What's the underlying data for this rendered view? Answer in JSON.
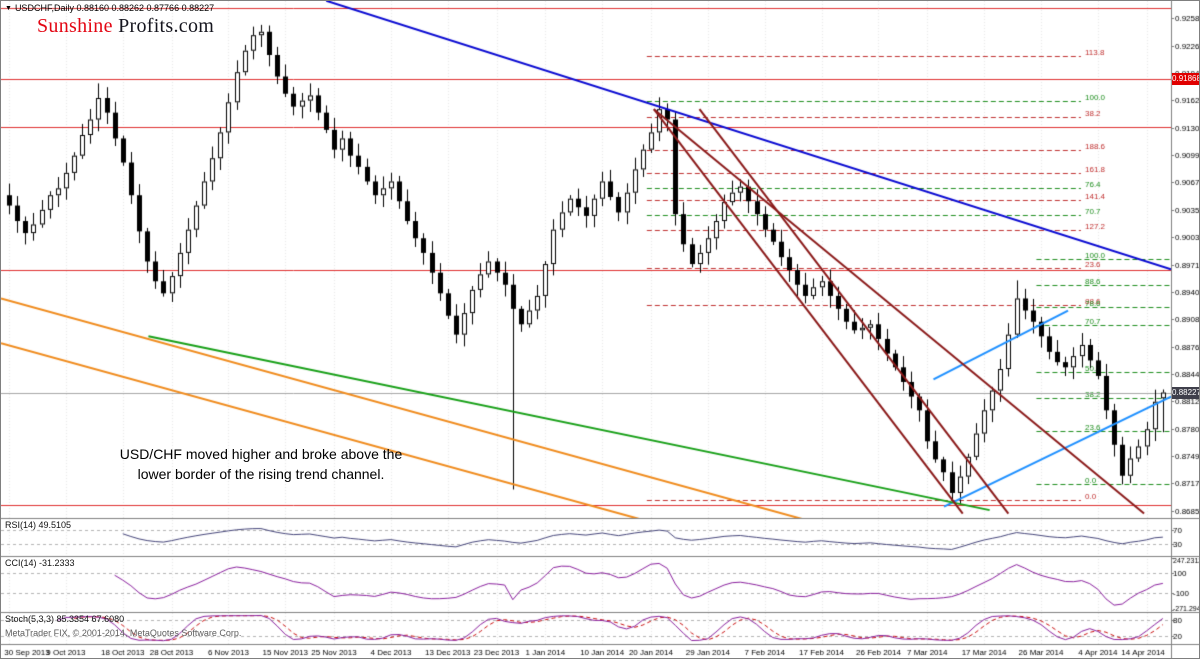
{
  "window": {
    "collapse_marker": "▼",
    "symbol_period": "USDCHF,Daily",
    "ohlc_text": "0.88160 0.88262 0.87766 0.88227"
  },
  "watermark": {
    "brand_primary": "Sunshine",
    "brand_secondary": "Profits.com"
  },
  "annotation": {
    "line1": "USD/CHF moved higher and broke above the",
    "line2": "lower border of the rising trend channel."
  },
  "footer": {
    "copyright": "MetaTrader FIX, © 2001-2014, MetaQuotes Software Corp."
  },
  "panels": {
    "rsi": {
      "label": "RSI(14) 49.5105",
      "levels": [
        70,
        30
      ],
      "range": [
        0,
        100
      ],
      "color": "#45457a",
      "axis_labels": [
        {
          "text": "70",
          "v": 70
        },
        {
          "text": "30",
          "v": 30
        }
      ]
    },
    "cci": {
      "label": "CCI(14) -31.2333",
      "levels": [
        100,
        -100
      ],
      "range": [
        -275,
        250
      ],
      "color": "#8a1f9e",
      "axis_labels": [
        {
          "text": "247.2312",
          "v": 247.2312
        },
        {
          "text": "100",
          "v": 100
        },
        {
          "text": "-100",
          "v": -100
        },
        {
          "text": "-271.2946",
          "v": -271.2946
        }
      ]
    },
    "stoch": {
      "label": "Stoch(5,3,3) 85.3354 67.6080",
      "levels": [
        80,
        20
      ],
      "range": [
        0,
        100
      ],
      "main_color": "#8a1f9e",
      "signal_color": "#cc1111",
      "axis_labels": [
        {
          "text": "80",
          "v": 80
        },
        {
          "text": "20",
          "v": 20
        }
      ]
    }
  },
  "colors": {
    "bull": "#ffffff",
    "bear": "#000000",
    "wick": "#000000",
    "grid": "#e8e8e8",
    "separator": "#7f7f7f",
    "level": "#b4b4b4",
    "axis_text": "#000000",
    "current_line": "#a6a6a6"
  },
  "chart_data": {
    "type": "candlestick",
    "symbol": "USDCHF",
    "timeframe": "Daily",
    "title_ohlc": {
      "open": 0.8816,
      "high": 0.88262,
      "low": 0.87766,
      "close": 0.88227
    },
    "price_axis_ticks": [
      "0.92580",
      "0.92260",
      "0.91945",
      "0.91625",
      "0.91305",
      "0.90990",
      "0.90670",
      "0.90350",
      "0.90035",
      "0.89715",
      "0.89400",
      "0.89080",
      "0.88760",
      "0.88445",
      "0.88125",
      "0.87805",
      "0.87490",
      "0.87170",
      "0.86850"
    ],
    "date_labels": [
      {
        "label": "30 Sep 2013",
        "i": 0
      },
      {
        "label": "9 Oct 2013",
        "i": 7
      },
      {
        "label": "18 Oct 2013",
        "i": 14
      },
      {
        "label": "28 Oct 2013",
        "i": 20
      },
      {
        "label": "6 Nov 2013",
        "i": 27
      },
      {
        "label": "15 Nov 2013",
        "i": 34
      },
      {
        "label": "25 Nov 2013",
        "i": 40
      },
      {
        "label": "4 Dec 2013",
        "i": 47
      },
      {
        "label": "13 Dec 2013",
        "i": 54
      },
      {
        "label": "23 Dec 2013",
        "i": 60
      },
      {
        "label": "1 Jan 2014",
        "i": 66
      },
      {
        "label": "10 Jan 2014",
        "i": 73
      },
      {
        "label": "20 Jan 2014",
        "i": 79
      },
      {
        "label": "29 Jan 2014",
        "i": 86
      },
      {
        "label": "7 Feb 2014",
        "i": 93
      },
      {
        "label": "17 Feb 2014",
        "i": 100
      },
      {
        "label": "26 Feb 2014",
        "i": 107
      },
      {
        "label": "7 Mar 2014",
        "i": 113
      },
      {
        "label": "17 Mar 2014",
        "i": 120
      },
      {
        "label": "26 Mar 2014",
        "i": 127
      },
      {
        "label": "4 Apr 2014",
        "i": 134
      },
      {
        "label": "14 Apr 2014",
        "i": 140
      }
    ],
    "candles": {
      "first_open": 0.9052,
      "closes": [
        0.904,
        0.9022,
        0.9008,
        0.9018,
        0.9035,
        0.9052,
        0.906,
        0.9078,
        0.9098,
        0.9122,
        0.914,
        0.9165,
        0.9148,
        0.9118,
        0.909,
        0.9052,
        0.901,
        0.8975,
        0.8952,
        0.8938,
        0.8958,
        0.8985,
        0.9012,
        0.904,
        0.9068,
        0.9095,
        0.9125,
        0.916,
        0.9195,
        0.922,
        0.9238,
        0.9242,
        0.9215,
        0.919,
        0.917,
        0.9155,
        0.9162,
        0.9168,
        0.9148,
        0.9128,
        0.9105,
        0.9118,
        0.9098,
        0.9085,
        0.9068,
        0.9052,
        0.906,
        0.9068,
        0.9045,
        0.9022,
        0.9002,
        0.8985,
        0.8962,
        0.8938,
        0.8912,
        0.889,
        0.8915,
        0.8942,
        0.896,
        0.8975,
        0.8962,
        0.8948,
        0.892,
        0.8902,
        0.8918,
        0.8935,
        0.8972,
        0.9012,
        0.9032,
        0.9048,
        0.9038,
        0.9028,
        0.9048,
        0.9068,
        0.905,
        0.9032,
        0.9055,
        0.9082,
        0.9105,
        0.9125,
        0.9152,
        0.914,
        0.903,
        0.8995,
        0.8972,
        0.8985,
        0.9002,
        0.9022,
        0.9044,
        0.9055,
        0.9062,
        0.9045,
        0.903,
        0.9012,
        0.8998,
        0.898,
        0.8965,
        0.8948,
        0.8935,
        0.8945,
        0.8952,
        0.8935,
        0.892,
        0.8905,
        0.8895,
        0.8898,
        0.8902,
        0.8885,
        0.8868,
        0.8852,
        0.8835,
        0.8818,
        0.8802,
        0.8766,
        0.8745,
        0.873,
        0.8706,
        0.8725,
        0.8748,
        0.8775,
        0.8802,
        0.8825,
        0.885,
        0.889,
        0.8932,
        0.8918,
        0.8905,
        0.8888,
        0.887,
        0.8858,
        0.8852,
        0.8865,
        0.8878,
        0.886,
        0.8842,
        0.8802,
        0.8762,
        0.8726,
        0.8746,
        0.876,
        0.878,
        0.8812,
        0.88227
      ],
      "wick_overrides": {
        "11": [
          0.9182,
          null
        ],
        "31": [
          0.925,
          null
        ],
        "62": [
          null,
          0.871
        ],
        "116": [
          null,
          0.8698
        ],
        "124": [
          0.8953,
          null
        ],
        "137": [
          null,
          0.8716
        ]
      },
      "last": [
        0.8816,
        0.88262,
        0.87766,
        0.88227
      ]
    },
    "overlays": {
      "h_lines": [
        {
          "price": 0.927,
          "color": "#e03030"
        },
        {
          "price": 0.91868,
          "color": "#e03030"
        },
        {
          "price": 0.9131,
          "color": "#e03030"
        },
        {
          "price": 0.8965,
          "color": "#e03030"
        },
        {
          "price": 0.8692,
          "color": "#e03030"
        }
      ],
      "current_price_line": {
        "price": 0.88227,
        "color": "#a6a6a6"
      },
      "badges": [
        {
          "value": "0.91868",
          "price": 0.91868,
          "bg": "#e00000"
        },
        {
          "value": "0.88227",
          "price": 0.88227,
          "bg": "#3f3f4b"
        }
      ],
      "fib_sets": [
        {
          "color": "#c03030",
          "x1": 0.552,
          "x2": 0.923,
          "levels": [
            {
              "label": "113.8",
              "price": 0.9214
            },
            {
              "label": "38.2",
              "price": 0.91435
            },
            {
              "label": "188.6",
              "price": 0.9105
            },
            {
              "label": "161.8",
              "price": 0.9078
            },
            {
              "label": "141.4",
              "price": 0.9046
            },
            {
              "label": "127.2",
              "price": 0.9012
            },
            {
              "label": "23.6",
              "price": 0.8968
            },
            {
              "label": "88.6",
              "price": 0.8925
            },
            {
              "label": "0.0",
              "price": 0.8698
            }
          ]
        },
        {
          "color": "#1e8e1e",
          "x1": 0.552,
          "x2": 0.923,
          "levels": [
            {
              "label": "100.0",
              "price": 0.9162
            },
            {
              "label": "76.4",
              "price": 0.906
            },
            {
              "label": "70.7",
              "price": 0.9029
            }
          ]
        },
        {
          "color": "#1e8e1e",
          "x1": 0.885,
          "x2": 1.0,
          "levels": [
            {
              "label": "100.0",
              "price": 0.8978
            },
            {
              "label": "88.6",
              "price": 0.8948
            },
            {
              "label": "78.6",
              "price": 0.8922
            },
            {
              "label": "70.7",
              "price": 0.8901
            },
            {
              "label": "50.0",
              "price": 0.8847
            },
            {
              "label": "38.2",
              "price": 0.8816
            },
            {
              "label": "23.6",
              "price": 0.8778
            },
            {
              "label": "0.0",
              "price": 0.8716
            }
          ]
        }
      ],
      "trendlines": [
        {
          "x1": 0.278,
          "p1": 0.9278,
          "x2": 1.0,
          "p2": 0.8966,
          "color": "#0a0ad2",
          "w": 2
        },
        {
          "x1": 0.806,
          "p1": 0.869,
          "x2": 1.0,
          "p2": 0.8818,
          "color": "#1e90ff",
          "w": 2
        },
        {
          "x1": 0.797,
          "p1": 0.8838,
          "x2": 0.912,
          "p2": 0.8918,
          "color": "#1e90ff",
          "w": 2
        },
        {
          "x1": 0.126,
          "p1": 0.8888,
          "x2": 0.845,
          "p2": 0.8686,
          "color": "#18a018",
          "w": 2
        },
        {
          "x1": 0.0,
          "p1": 0.8932,
          "x2": 0.7,
          "p2": 0.867,
          "color": "#f08c1e",
          "w": 2
        },
        {
          "x1": 0.0,
          "p1": 0.888,
          "x2": 0.585,
          "p2": 0.8661,
          "color": "#f08c1e",
          "w": 2
        },
        {
          "x1": 0.558,
          "p1": 0.9152,
          "x2": 0.822,
          "p2": 0.8682,
          "color": "#8b1a1a",
          "w": 2
        },
        {
          "x1": 0.597,
          "p1": 0.9152,
          "x2": 0.861,
          "p2": 0.8682,
          "color": "#8b1a1a",
          "w": 2
        },
        {
          "x1": 0.558,
          "p1": 0.9152,
          "x2": 0.977,
          "p2": 0.8682,
          "color": "#8b1a1a",
          "w": 2
        }
      ]
    }
  }
}
